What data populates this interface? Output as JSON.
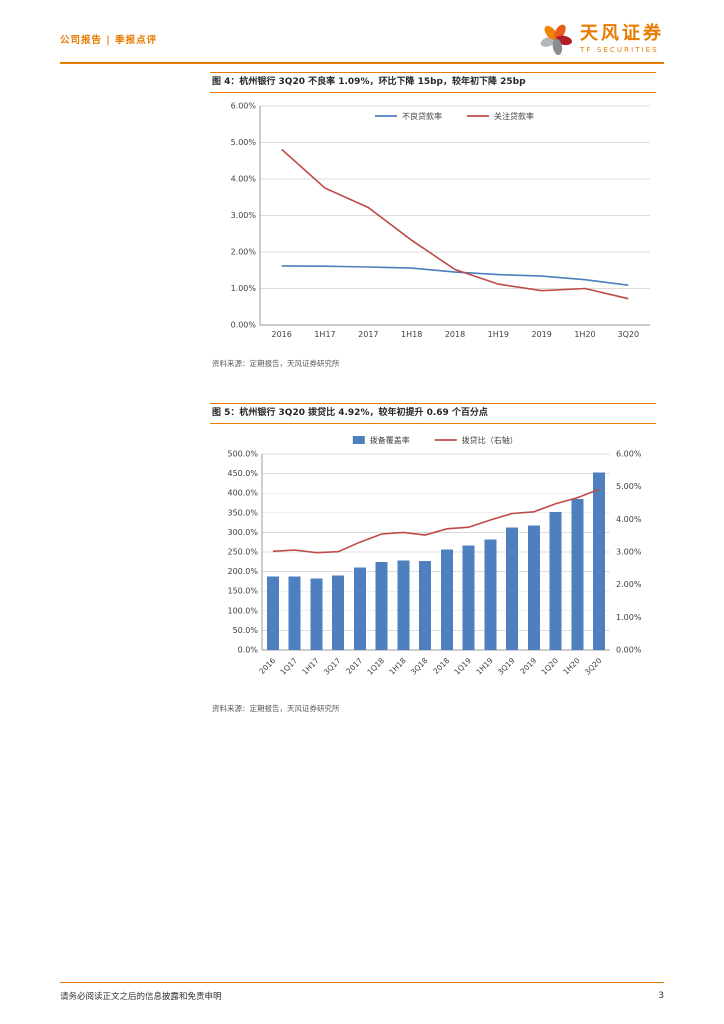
{
  "header": {
    "breadcrumb": "公司报告 | 季报点评",
    "brand_cn": "天风证券",
    "brand_en": "TF SECURITIES"
  },
  "colors": {
    "accent_orange": "#e97a00",
    "series_blue": "#4e7fbe",
    "series_red": "#be4b48"
  },
  "figure4": {
    "title": "图 4：杭州银行 3Q20 不良率 1.09%，环比下降 15bp，较年初下降 25bp",
    "source": "资料来源：定期报告，天风证券研究所"
  },
  "figure5": {
    "title": "图 5：杭州银行 3Q20 拨贷比 4.92%，较年初提升 0.69 个百分点",
    "source": "资料来源：定期报告，天风证券研究所"
  },
  "footer": {
    "disclaimer": "请务必阅读正文之后的信息披露和免责申明",
    "page_number": "3"
  },
  "chart_data": [
    {
      "type": "line",
      "title": "图 4：杭州银行 3Q20 不良率 1.09%，环比下降 15bp，较年初下降 25bp",
      "categories": [
        "2016",
        "1H17",
        "2017",
        "1H18",
        "2018",
        "1H19",
        "2019",
        "1H20",
        "3Q20"
      ],
      "series": [
        {
          "id": "npl-ratio-line",
          "name": "不良贷款率",
          "color": "#4e7fbe",
          "values": [
            1.62,
            1.61,
            1.59,
            1.56,
            1.45,
            1.38,
            1.34,
            1.24,
            1.09
          ]
        },
        {
          "id": "special-mention-ratio-line",
          "name": "关注贷款率",
          "color": "#be4b48",
          "values": [
            4.81,
            3.75,
            3.22,
            2.32,
            1.52,
            1.12,
            0.94,
            1.0,
            0.72
          ]
        }
      ],
      "ylim": [
        0,
        6
      ],
      "ytick_step": 1,
      "ytick_decimals": 2,
      "grid": true,
      "legend_position": "top"
    },
    {
      "type": "bar-line",
      "title": "图 5：杭州银行 3Q20 拨贷比 4.92%，较年初提升 0.69 个百分点",
      "categories": [
        "2016",
        "1Q17",
        "1H17",
        "3Q17",
        "2017",
        "1Q18",
        "1H18",
        "3Q18",
        "2018",
        "1Q19",
        "1H19",
        "3Q19",
        "2019",
        "1Q20",
        "1H20",
        "3Q20"
      ],
      "bar_series": {
        "id": "provision-coverage-bars",
        "name": "拨备覆盖率",
        "axis": "left",
        "color": "#4e7fbe",
        "values": [
          187,
          187,
          182,
          190,
          211,
          224,
          228,
          227,
          256,
          266,
          282,
          312,
          317,
          352,
          385,
          453
        ]
      },
      "line_series": {
        "id": "provision-to-loan-line",
        "name": "拨贷比（右轴）",
        "axis": "right",
        "color": "#be4b48",
        "values": [
          3.02,
          3.06,
          2.98,
          3.01,
          3.3,
          3.55,
          3.6,
          3.52,
          3.71,
          3.76,
          3.98,
          4.18,
          4.23,
          4.48,
          4.66,
          4.92
        ]
      },
      "left_ylim": [
        0,
        500
      ],
      "left_tick_step": 50,
      "left_tick_decimals": 1,
      "right_ylim": [
        0,
        6
      ],
      "right_tick_step": 1,
      "right_tick_decimals": 2,
      "grid": true,
      "legend_position": "top"
    }
  ]
}
